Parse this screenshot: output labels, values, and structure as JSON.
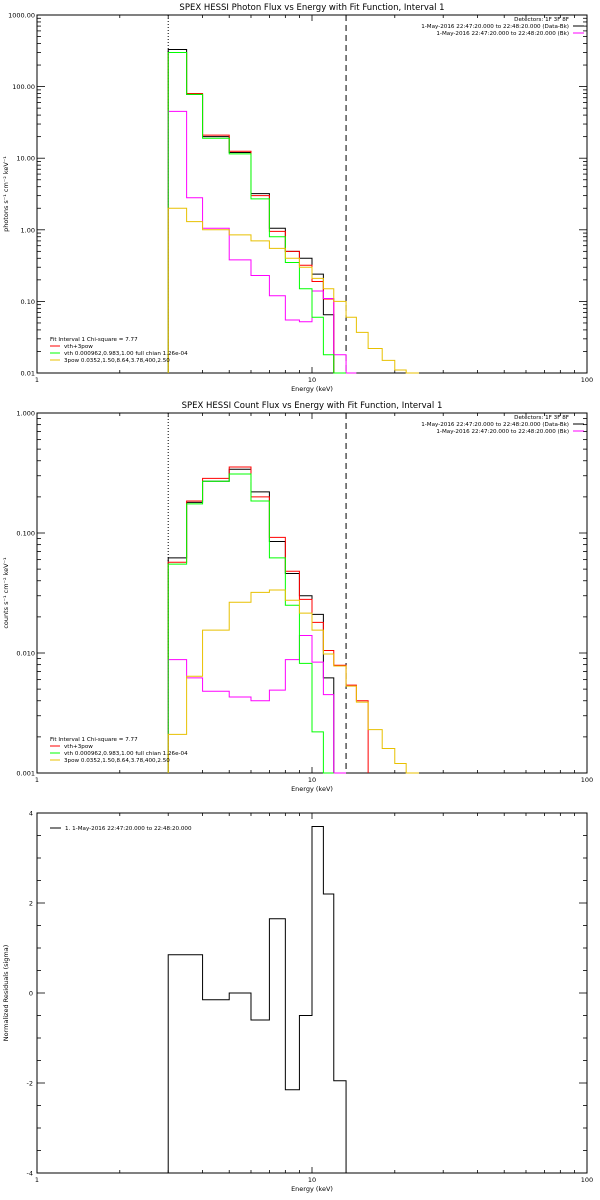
{
  "chart_data": [
    {
      "type": "line",
      "title": "SPEX HESSI Photon Flux vs Energy with Fit Function, Interval 1",
      "xlabel": "Energy (keV)",
      "ylabel": "photons s⁻¹ cm⁻² keV⁻¹",
      "xscale": "log",
      "yscale": "log",
      "xlim": [
        1,
        100
      ],
      "ylim": [
        0.01,
        1000
      ],
      "x_ticks": [
        "1",
        "10",
        "100"
      ],
      "y_ticks": [
        "0.01",
        "0.10",
        "1.00",
        "10.00",
        "100.00",
        "1000.00"
      ],
      "vlines": [
        {
          "x": 3.0,
          "style": "dotted"
        },
        {
          "x": 13.3,
          "style": "dashed"
        }
      ],
      "edges": [
        3.0,
        3.5,
        4.0,
        5.0,
        6.0,
        7.0,
        8.0,
        9.0,
        10.0,
        11.0,
        12.0,
        13.3,
        14.5,
        16.0,
        18.0,
        20.0,
        22.0,
        24.5
      ],
      "header_right": [
        "Detectors: 1F 3F 8F",
        "1-May-2016 22:47:20.000 to 22:48:20.000 (Data-Bk)",
        "1-May-2016 22:47:20.000 to 22:48:20.000 (Bk)"
      ],
      "legend_left": [
        "Fit Interval 1    Chi-square = 7.77",
        "vth+3pow",
        "vth 0.000962,0.983,1.00  full chian 1.26e-04",
        "3pow 0.0352,1.50,8.64,3.78,400,2.50"
      ],
      "series": [
        {
          "role": "data",
          "color": "#000000",
          "values": [
            330,
            78,
            20,
            12,
            3.2,
            1.05,
            0.5,
            0.4,
            0.24,
            0.065,
            0.008
          ]
        },
        {
          "role": "fit",
          "color": "#ff0000",
          "values": [
            300,
            80,
            21,
            12.5,
            3.0,
            0.95,
            0.5,
            0.32,
            0.19,
            0.108
          ]
        },
        {
          "role": "background",
          "color": "#ff00ff",
          "values": [
            45,
            2.8,
            1.05,
            0.38,
            0.23,
            0.12,
            0.055,
            0.052,
            0.14,
            0.11,
            0.018,
            0.005
          ]
        },
        {
          "role": "vth",
          "color": "#00ff00",
          "values": [
            300,
            78,
            19,
            11.5,
            2.7,
            0.8,
            0.35,
            0.15,
            0.06,
            0.018,
            0.004
          ]
        },
        {
          "role": "3pow",
          "color": "#e8c000",
          "values": [
            2.0,
            1.3,
            1.0,
            0.85,
            0.7,
            0.55,
            0.4,
            0.3,
            0.21,
            0.15,
            0.1,
            0.06,
            0.037,
            0.022,
            0.015,
            0.011,
            0.005
          ]
        }
      ]
    },
    {
      "type": "line",
      "title": "SPEX HESSI Count Flux vs Energy with Fit Function, Interval 1",
      "xlabel": "Energy (keV)",
      "ylabel": "counts s⁻¹ cm⁻² keV⁻¹",
      "xscale": "log",
      "yscale": "log",
      "xlim": [
        1,
        100
      ],
      "ylim": [
        0.001,
        1
      ],
      "x_ticks": [
        "1",
        "10",
        "100"
      ],
      "y_ticks": [
        "0.001",
        "0.010",
        "0.100",
        "1.000"
      ],
      "vlines": [
        {
          "x": 3.0,
          "style": "dotted"
        },
        {
          "x": 13.3,
          "style": "dashed"
        }
      ],
      "edges": [
        3.0,
        3.5,
        4.0,
        5.0,
        6.0,
        7.0,
        8.0,
        9.0,
        10.0,
        11.0,
        12.0,
        13.3,
        14.5,
        16.0,
        18.0,
        20.0,
        22.0,
        24.5
      ],
      "header_right": [
        "Detectors: 1F 3F 8F",
        "1-May-2016 22:47:20.000 to 22:48:20.000 (Data-Bk)",
        "1-May-2016 22:47:20.000 to 22:48:20.000 (Bk)"
      ],
      "legend_left": [
        "Fit Interval 1    Chi-square = 7.77",
        "vth+3pow",
        "vth 0.000962,0.983,1.00  full chian 1.26e-04",
        "3pow 0.0352,1.50,8.64,3.78,400,2.50"
      ],
      "series": [
        {
          "role": "data",
          "color": "#000000",
          "values": [
            0.062,
            0.18,
            0.27,
            0.34,
            0.22,
            0.085,
            0.046,
            0.03,
            0.021,
            0.0062,
            0.0009
          ]
        },
        {
          "role": "fit",
          "color": "#ff0000",
          "values": [
            0.057,
            0.185,
            0.285,
            0.355,
            0.2,
            0.092,
            0.048,
            0.028,
            0.018,
            0.0105,
            0.0079,
            0.0054,
            0.004
          ]
        },
        {
          "role": "background",
          "color": "#ff00ff",
          "values": [
            0.0088,
            0.0062,
            0.0048,
            0.0043,
            0.004,
            0.0049,
            0.0088,
            0.014,
            0.0084,
            0.0045,
            0.0008
          ]
        },
        {
          "role": "vth",
          "color": "#00ff00",
          "values": [
            0.055,
            0.175,
            0.27,
            0.31,
            0.185,
            0.062,
            0.025,
            0.0082,
            0.0022,
            0.0006
          ]
        },
        {
          "role": "3pow",
          "color": "#e8c000",
          "values": [
            0.0021,
            0.0064,
            0.0155,
            0.0265,
            0.032,
            0.0335,
            0.0275,
            0.0215,
            0.0155,
            0.0098,
            0.0078,
            0.0053,
            0.0039,
            0.0023,
            0.0016,
            0.0012,
            0.0006
          ]
        }
      ]
    },
    {
      "type": "line",
      "title": "",
      "xlabel": "Energy (keV)",
      "ylabel": "Normalized Residuals (sigma)",
      "xscale": "log",
      "yscale": "linear",
      "xlim": [
        1,
        100
      ],
      "ylim": [
        -4,
        4
      ],
      "x_ticks": [
        "1",
        "10",
        "100"
      ],
      "y_ticks": [
        "-4",
        "-2",
        "0",
        "2",
        "4"
      ],
      "edges": [
        3.0,
        4.0,
        5.0,
        6.0,
        7.0,
        8.0,
        9.0,
        10.0,
        11.0,
        12.0,
        13.3
      ],
      "legend": "1.  1-May-2016 22:47:20.000 to 22:48:20.000",
      "series": [
        {
          "role": "residual",
          "color": "#000000",
          "values": [
            0.85,
            -0.15,
            0.0,
            -0.6,
            1.65,
            -2.15,
            -0.5,
            3.7,
            2.2,
            -1.95
          ]
        }
      ]
    }
  ]
}
